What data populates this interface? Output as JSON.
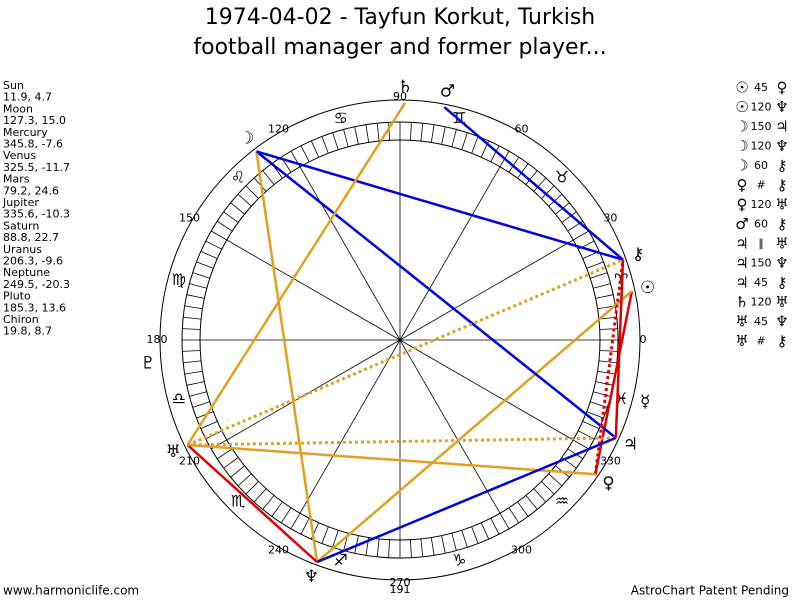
{
  "title": [
    "1974-04-02 - Tayfun Korkut, Turkish",
    "football manager and former player..."
  ],
  "planets": [
    {
      "name": "Sun",
      "position": "11.9, 4.7",
      "glyph": "☉"
    },
    {
      "name": "Moon",
      "position": "127.3, 15.0",
      "glyph": "☽"
    },
    {
      "name": "Mercury",
      "position": "345.8, -7.6",
      "glyph": "☿"
    },
    {
      "name": "Venus",
      "position": "325.5, -11.7",
      "glyph": "♀"
    },
    {
      "name": "Mars",
      "position": "79.2, 24.6",
      "glyph": "♂"
    },
    {
      "name": "Jupiter",
      "position": "335.6, -10.3",
      "glyph": "♃"
    },
    {
      "name": "Saturn",
      "position": "88.8, 22.7",
      "glyph": "♄"
    },
    {
      "name": "Uranus",
      "position": "206.3, -9.6",
      "glyph": "♅"
    },
    {
      "name": "Neptune",
      "position": "249.5, -20.3",
      "glyph": "♆"
    },
    {
      "name": "Pluto",
      "position": "185.3, 13.6",
      "glyph": "♇"
    },
    {
      "name": "Chiron",
      "position": "19.8, 8.7",
      "glyph": "⚷"
    }
  ],
  "aspects": [
    {
      "from": "☉",
      "aspect": "45",
      "to": "♀"
    },
    {
      "from": "☉",
      "aspect": "120",
      "to": "♆"
    },
    {
      "from": "☽",
      "aspect": "150",
      "to": "♃"
    },
    {
      "from": "☽",
      "aspect": "120",
      "to": "♆"
    },
    {
      "from": "☽",
      "aspect": "60",
      "to": "⚷"
    },
    {
      "from": "♀",
      "aspect": "#",
      "to": "⚷"
    },
    {
      "from": "♀",
      "aspect": "120",
      "to": "♅"
    },
    {
      "from": "♂",
      "aspect": "60",
      "to": "⚷"
    },
    {
      "from": "♃",
      "aspect": "∥",
      "to": "♅"
    },
    {
      "from": "♃",
      "aspect": "150",
      "to": "♆"
    },
    {
      "from": "♃",
      "aspect": "45",
      "to": "⚷"
    },
    {
      "from": "♄",
      "aspect": "120",
      "to": "♅"
    },
    {
      "from": "♅",
      "aspect": "45",
      "to": "♆"
    },
    {
      "from": "♅",
      "aspect": "#",
      "to": "⚷"
    }
  ],
  "signs": [
    "♈",
    "♉",
    "♊",
    "♋",
    "♌",
    "♍",
    "♎",
    "♏",
    "♐",
    "♑",
    "♒",
    "♓"
  ],
  "degree_labels": [
    "0",
    "30",
    "60",
    "90",
    "120",
    "150",
    "180",
    "210",
    "240",
    "270",
    "300",
    "330"
  ],
  "bottom_label": "191",
  "footer": {
    "left": "www.harmoniclife.com",
    "right": "AstroChart Patent Pending"
  }
}
